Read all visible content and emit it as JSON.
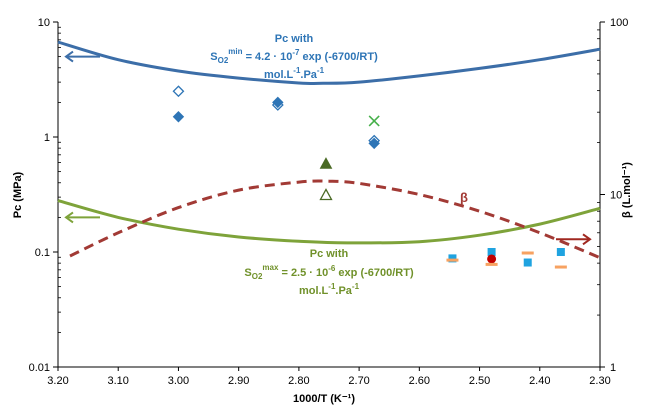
{
  "chart_data": {
    "type": "scatter",
    "xlabel": "1000/T (K⁻¹)",
    "ylabel": "Pc (MPa)",
    "y2label": "β (L.mol⁻¹)",
    "xlim": [
      3.2,
      2.3
    ],
    "ylim": [
      0.01,
      10
    ],
    "y2lim": [
      1,
      100
    ],
    "yscale": "log",
    "y2scale": "log",
    "x_axis_reversed": true,
    "x_ticks": [
      "3.20",
      "3.10",
      "3.00",
      "2.90",
      "2.80",
      "2.70",
      "2.60",
      "2.50",
      "2.40",
      "2.30"
    ],
    "y_ticks": [
      "0.01",
      "0.1",
      "1",
      "10"
    ],
    "y2_ticks": [
      "1",
      "10",
      "100"
    ],
    "grid": false,
    "annotations": {
      "blue": {
        "line1": "Pc with",
        "line2_prefix": "S",
        "line2_sub": "O2",
        "line2_sup": "min",
        "line2_rest": " = 4.2 · 10",
        "line2_exp": "-7",
        "line2_tail": " exp (-6700/RT)",
        "line3": "mol.L",
        "line3_sup1": "-1",
        "line3_mid": ".Pa",
        "line3_sup2": "-1"
      },
      "green": {
        "line1": "Pc with",
        "line2_prefix": "S",
        "line2_sub": "O2",
        "line2_sup": "max",
        "line2_rest": " = 2.5 · 10",
        "line2_exp": "-6",
        "line2_tail": " exp (-6700/RT)",
        "line3": "mol.L",
        "line3_sup1": "-1",
        "line3_mid": ".Pa",
        "line3_sup2": "-1"
      },
      "beta": "β"
    },
    "colors": {
      "blue_curve": "#3c6ea8",
      "green_curve": "#7ea33a",
      "beta_curve": "#a23a35",
      "blue_marker": "#2e75b6",
      "green_x": "#46b04a",
      "dark_green": "#4a6a24",
      "cyan": "#1fa3e0",
      "orange": "#f7a261",
      "red": "#c00000",
      "dark_red_arrow": "#a02820"
    },
    "series": [
      {
        "curve": "blue",
        "axis": "left",
        "x": [
          3.2,
          3.1,
          3.0,
          2.9,
          2.8,
          2.76,
          2.7,
          2.6,
          2.5,
          2.4,
          2.3
        ],
        "values": [
          6.7,
          4.7,
          3.75,
          3.25,
          2.95,
          2.93,
          3.0,
          3.4,
          3.95,
          4.7,
          5.8
        ]
      },
      {
        "curve": "green",
        "axis": "left",
        "x": [
          3.2,
          3.1,
          3.0,
          2.9,
          2.8,
          2.72,
          2.6,
          2.5,
          2.4,
          2.3
        ],
        "values": [
          0.28,
          0.2,
          0.158,
          0.135,
          0.124,
          0.12,
          0.123,
          0.14,
          0.175,
          0.24
        ]
      },
      {
        "curve": "beta",
        "axis": "right",
        "x": [
          3.18,
          3.1,
          3.0,
          2.9,
          2.8,
          2.75,
          2.7,
          2.6,
          2.5,
          2.4,
          2.3
        ],
        "values": [
          4.4,
          6.0,
          8.4,
          10.6,
          11.8,
          11.95,
          11.6,
          10.0,
          8.0,
          6.0,
          4.3
        ]
      }
    ],
    "points": [
      {
        "marker": "diamond-open",
        "color": "blue_marker",
        "x": 3.0,
        "y": 2.5
      },
      {
        "marker": "diamond-filled",
        "color": "blue_marker",
        "x": 3.0,
        "y": 1.5
      },
      {
        "marker": "diamond-open",
        "color": "blue_marker",
        "x": 2.835,
        "y": 1.9
      },
      {
        "marker": "diamond-filled",
        "color": "blue_marker",
        "x": 2.835,
        "y": 2.0
      },
      {
        "marker": "x",
        "color": "green_x",
        "x": 2.675,
        "y": 1.38
      },
      {
        "marker": "diamond-open",
        "color": "blue_marker",
        "x": 2.675,
        "y": 0.93
      },
      {
        "marker": "diamond-filled",
        "color": "blue_marker",
        "x": 2.675,
        "y": 0.88
      },
      {
        "marker": "triangle-filled",
        "color": "dark_green",
        "x": 2.755,
        "y": 0.58
      },
      {
        "marker": "triangle-open",
        "color": "dark_green",
        "x": 2.755,
        "y": 0.31
      },
      {
        "marker": "square",
        "color": "cyan",
        "x": 2.545,
        "y": 0.088
      },
      {
        "marker": "dash",
        "color": "orange",
        "x": 2.545,
        "y": 0.085
      },
      {
        "marker": "square",
        "color": "cyan",
        "x": 2.48,
        "y": 0.1
      },
      {
        "marker": "circle",
        "color": "red",
        "x": 2.48,
        "y": 0.087
      },
      {
        "marker": "dash",
        "color": "orange",
        "x": 2.48,
        "y": 0.078
      },
      {
        "marker": "dash",
        "color": "orange",
        "x": 2.42,
        "y": 0.098
      },
      {
        "marker": "square",
        "color": "cyan",
        "x": 2.42,
        "y": 0.081
      },
      {
        "marker": "square",
        "color": "cyan",
        "x": 2.365,
        "y": 0.1
      },
      {
        "marker": "dash",
        "color": "orange",
        "x": 2.365,
        "y": 0.074
      }
    ]
  }
}
